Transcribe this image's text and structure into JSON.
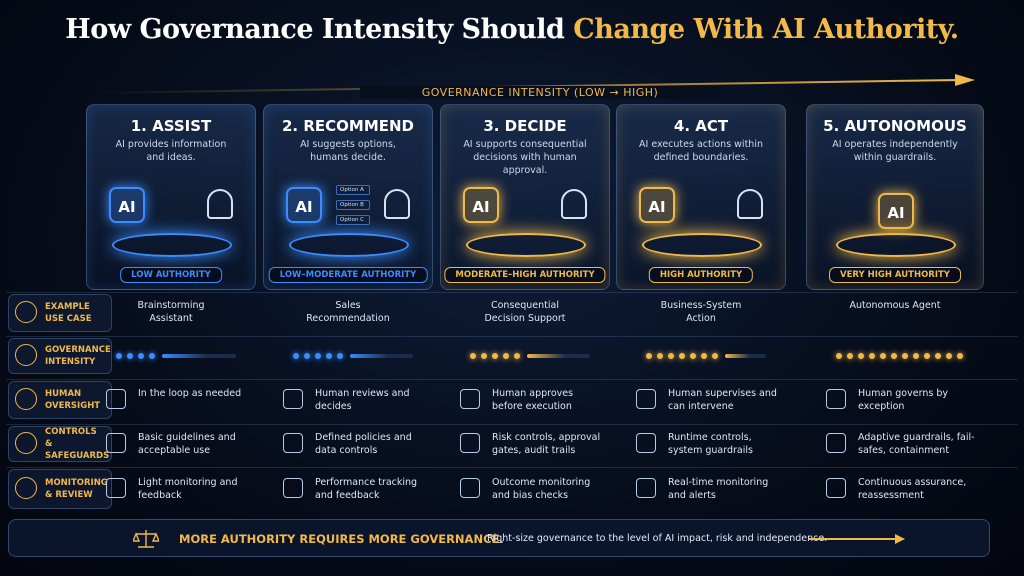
{
  "title": {
    "main": "How Governance Intensity Should",
    "highlight": "Change With AI Authority."
  },
  "axis_label": "GOVERNANCE INTENSITY (LOW → HIGH)",
  "ai_label": "AI",
  "option_labels": [
    "Option A",
    "Option B",
    "Option C"
  ],
  "levels": [
    {
      "title": "1. ASSIST",
      "description": "AI provides information and ideas.",
      "authority": "LOW AUTHORITY",
      "accent": "#3b8cff"
    },
    {
      "title": "2. RECOMMEND",
      "description": "AI suggests options, humans decide.",
      "authority": "LOW–MODERATE AUTHORITY",
      "accent": "#3b8cff"
    },
    {
      "title": "3. DECIDE",
      "description": "AI supports consequential decisions with human approval.",
      "authority": "MODERATE–HIGH AUTHORITY",
      "accent": "#f1b947"
    },
    {
      "title": "4. ACT",
      "description": "AI executes actions within defined boundaries.",
      "authority": "HIGH AUTHORITY",
      "accent": "#f1b947"
    },
    {
      "title": "5. AUTONOMOUS",
      "description": "AI operates independently within guardrails.",
      "authority": "VERY HIGH AUTHORITY",
      "accent": "#f1b947"
    }
  ],
  "rows": [
    {
      "label": "EXAMPLE USE CASE",
      "cells": [
        "Brainstorming Assistant",
        "Sales Recommendation",
        "Consequential Decision Support",
        "Business-System Action",
        "Autonomous Agent"
      ]
    },
    {
      "label": "GOVERNANCE INTENSITY",
      "dots": [
        4,
        5,
        5,
        7,
        12
      ]
    },
    {
      "label": "HUMAN OVERSIGHT",
      "cells": [
        "In the loop as needed",
        "Human reviews and decides",
        "Human approves before execution",
        "Human supervises and can intervene",
        "Human governs by exception"
      ]
    },
    {
      "label": "CONTROLS & SAFEGUARDS",
      "cells": [
        "Basic guidelines and acceptable use",
        "Defined policies and data controls",
        "Risk controls, approval gates, audit trails",
        "Runtime controls, system guardrails",
        "Adaptive guardrails, fail-safes, containment"
      ]
    },
    {
      "label": "MONITORING & REVIEW",
      "cells": [
        "Light monitoring and feedback",
        "Performance tracking and feedback",
        "Outcome monitoring and bias checks",
        "Real-time monitoring and alerts",
        "Continuous assurance, reassessment"
      ]
    }
  ],
  "footer": {
    "headline": "MORE AUTHORITY REQUIRES MORE GOVERNANCE.",
    "text": "Right-size governance to the level of AI impact, risk and independence."
  }
}
